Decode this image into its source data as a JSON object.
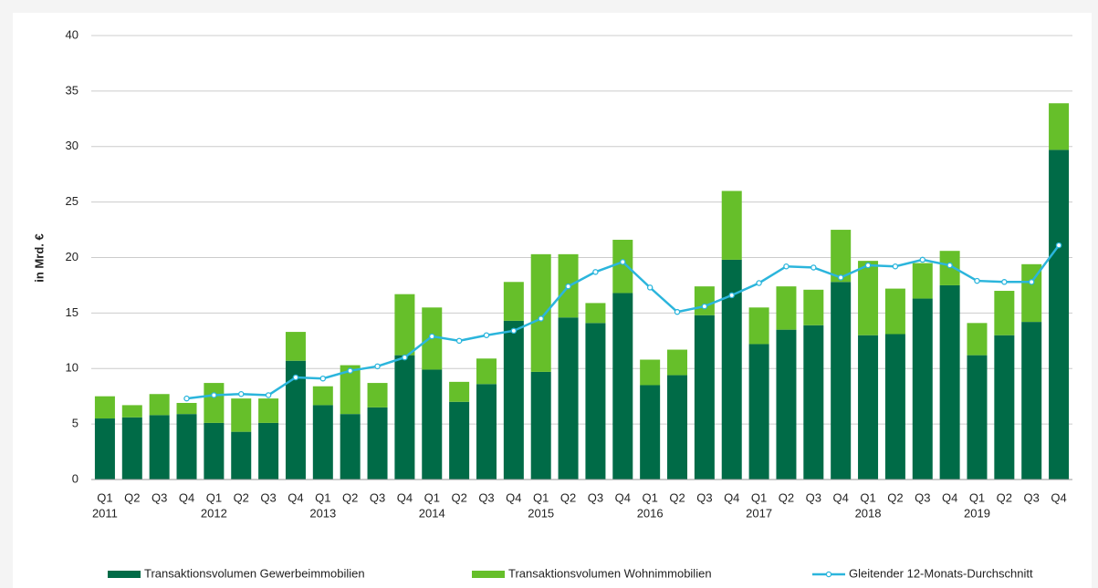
{
  "chart_data": {
    "type": "bar",
    "stacked": true,
    "y_label": "in Mrd. €",
    "categories": [
      "Q1",
      "Q2",
      "Q3",
      "Q4",
      "Q1",
      "Q2",
      "Q3",
      "Q4",
      "Q1",
      "Q2",
      "Q3",
      "Q4",
      "Q1",
      "Q2",
      "Q3",
      "Q4",
      "Q1",
      "Q2",
      "Q3",
      "Q4",
      "Q1",
      "Q2",
      "Q3",
      "Q4",
      "Q1",
      "Q2",
      "Q3",
      "Q4",
      "Q1",
      "Q2",
      "Q3",
      "Q4",
      "Q1",
      "Q2",
      "Q3",
      "Q4"
    ],
    "years": [
      "2011",
      null,
      null,
      null,
      "2012",
      null,
      null,
      null,
      "2013",
      null,
      null,
      null,
      "2014",
      null,
      null,
      null,
      "2015",
      null,
      null,
      null,
      "2016",
      null,
      null,
      null,
      "2017",
      null,
      null,
      null,
      "2018",
      null,
      null,
      null,
      "2019",
      null,
      null,
      null
    ],
    "series": [
      {
        "name": "Transaktionsvolumen Gewerbeimmobilien",
        "color": "#006b47",
        "type": "bar",
        "values": [
          5.5,
          5.6,
          5.8,
          5.9,
          5.1,
          4.3,
          5.1,
          10.7,
          6.7,
          5.9,
          6.5,
          11.2,
          9.9,
          7.0,
          8.6,
          14.3,
          9.7,
          14.6,
          14.1,
          16.8,
          8.5,
          9.4,
          14.8,
          19.8,
          12.2,
          13.5,
          13.9,
          17.8,
          13.0,
          13.1,
          16.3,
          17.5,
          11.2,
          13.0,
          14.2,
          29.7
        ]
      },
      {
        "name": "Transaktionsvolumen Wohnimmobilien",
        "color": "#66bf2a",
        "type": "bar",
        "values": [
          2.0,
          1.1,
          1.9,
          1.0,
          3.6,
          3.0,
          2.2,
          2.6,
          1.7,
          4.4,
          2.2,
          5.5,
          5.6,
          1.8,
          2.3,
          3.5,
          10.6,
          5.7,
          1.8,
          4.8,
          2.3,
          2.3,
          2.6,
          6.2,
          3.3,
          3.9,
          3.2,
          4.7,
          6.7,
          4.1,
          3.2,
          3.1,
          2.9,
          4.0,
          5.2,
          4.2
        ]
      },
      {
        "name": "Gleitender 12-Monats-Durchschnitt",
        "color": "#2bb5dc",
        "type": "line",
        "values": [
          null,
          null,
          null,
          7.3,
          7.6,
          7.7,
          7.6,
          9.2,
          9.1,
          9.8,
          10.2,
          11.0,
          12.9,
          12.5,
          13.0,
          13.4,
          14.5,
          17.4,
          18.7,
          19.6,
          17.3,
          15.1,
          15.6,
          16.6,
          17.7,
          19.2,
          19.1,
          18.2,
          19.3,
          19.2,
          19.8,
          19.3,
          17.9,
          17.8,
          17.8,
          21.1
        ]
      }
    ],
    "ylim": [
      0,
      40
    ],
    "yticks": [
      0,
      5,
      10,
      15,
      20,
      25,
      30,
      35,
      40
    ],
    "grid": true,
    "legend": "bottom"
  }
}
